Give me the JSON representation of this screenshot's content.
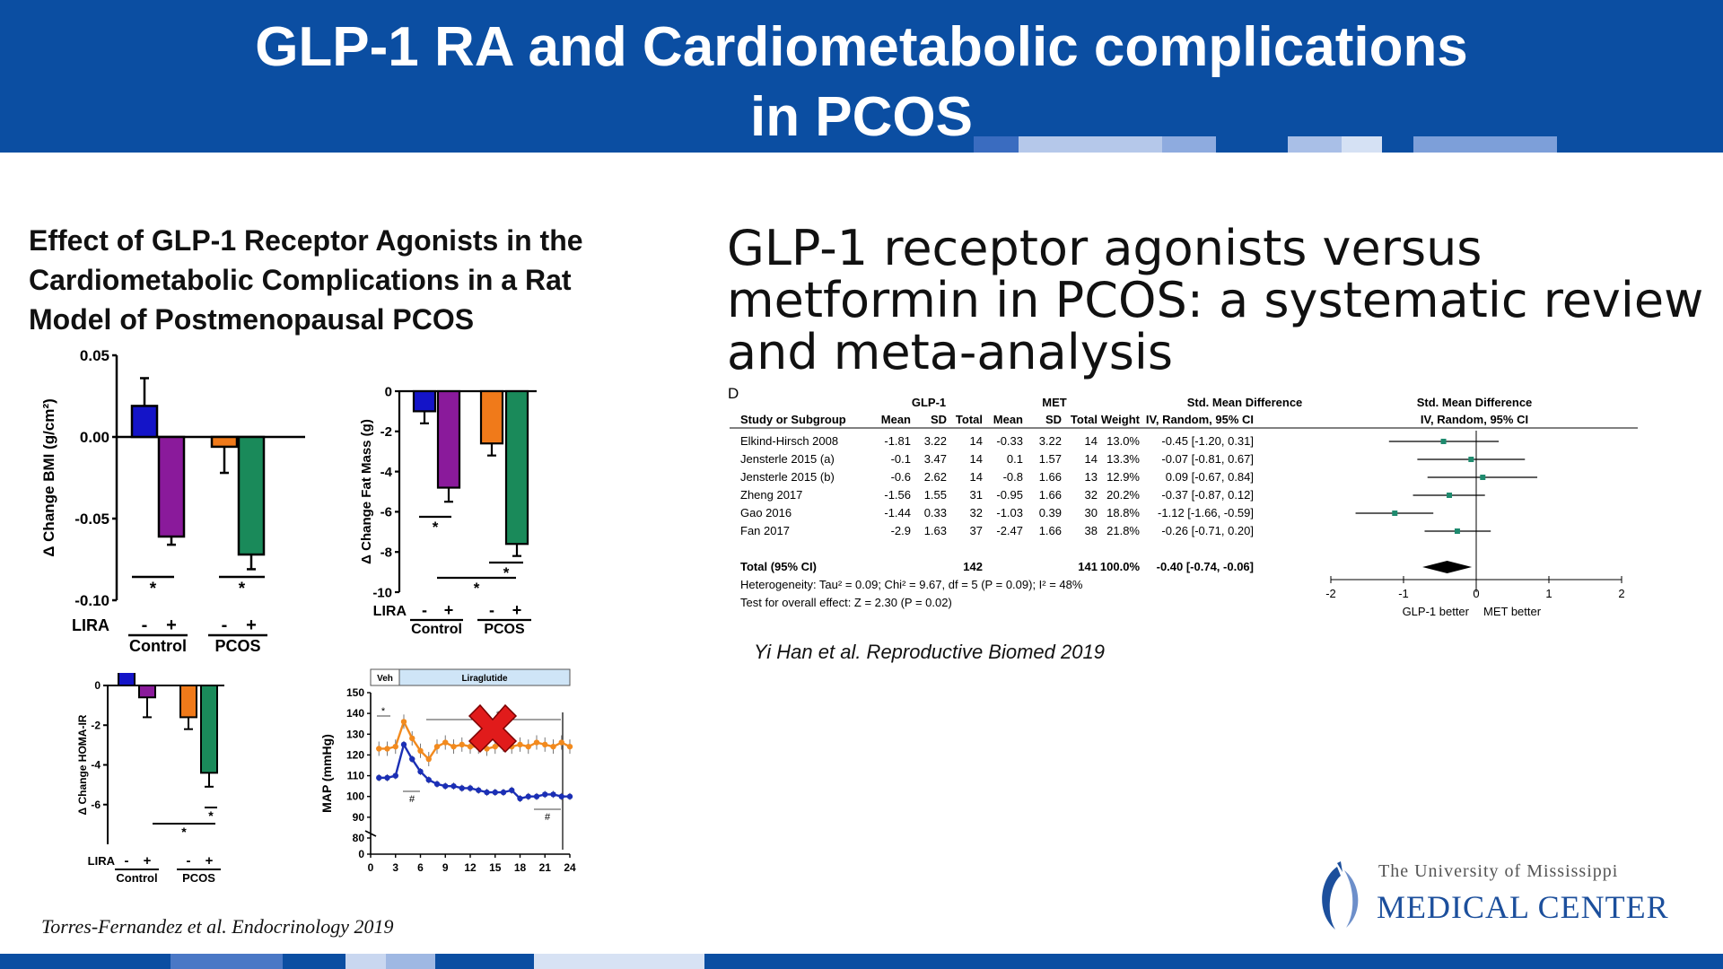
{
  "slide": {
    "title_line1": "GLP-1 RA and Cardiometabolic complications",
    "title_line2": "in PCOS",
    "left_title": "Effect of GLP-1 Receptor Agonists in the Cardiometabolic Complications in a Rat Model of Postmenopausal PCOS",
    "right_title": "GLP-1 receptor agonists versus metformin in PCOS: a systematic review and meta-analysis",
    "citation_left": "Torres-Fernandez et al. Endocrinology 2019",
    "citation_right": "Yi Han et al. Reproductive Biomed 2019",
    "logo_line1": "The University of Mississippi",
    "logo_line2": "MEDICAL CENTER"
  },
  "colors": {
    "header_blue": "#0b4ea2",
    "control_minus": "#1414c8",
    "control_plus": "#8a1a9b",
    "pcos_minus": "#f07a1a",
    "pcos_plus": "#1a8a5a",
    "veh_line": "#f28a1e",
    "lira_line": "#1b2fb5",
    "forest_point": "#1e8a6e",
    "cross_red": "#e11b1b"
  },
  "chart_data": [
    {
      "type": "bar",
      "ylabel": "Δ Change BMI (g/cm²)",
      "ylim": [
        -0.1,
        0.05
      ],
      "yticks": [
        "0.05",
        "0.00",
        "-0.05",
        "-0.10"
      ],
      "group_label_prefix": "LIRA",
      "categories": [
        "Control -",
        "Control +",
        "PCOS -",
        "PCOS +"
      ],
      "signs": [
        "-",
        "+",
        "-",
        "+"
      ],
      "groups": [
        "Control",
        "PCOS"
      ],
      "values": [
        0.019,
        -0.061,
        -0.006,
        -0.072
      ],
      "errors": [
        0.017,
        0.005,
        0.016,
        0.009
      ],
      "sig_labels": [
        "*",
        "*"
      ]
    },
    {
      "type": "bar",
      "ylabel": "Δ Change Fat Mass (g)",
      "ylim": [
        -10,
        0
      ],
      "yticks": [
        "0",
        "-2",
        "-4",
        "-6",
        "-8",
        "-10"
      ],
      "group_label_prefix": "LIRA",
      "categories": [
        "Control -",
        "Control +",
        "PCOS -",
        "PCOS +"
      ],
      "signs": [
        "-",
        "+",
        "-",
        "+"
      ],
      "groups": [
        "Control",
        "PCOS"
      ],
      "values": [
        -1.0,
        -4.8,
        -2.6,
        -7.6
      ],
      "errors": [
        0.6,
        0.7,
        0.6,
        0.6
      ],
      "sig_labels": [
        "*",
        "*",
        "*"
      ]
    },
    {
      "type": "bar",
      "ylabel": "Δ Change HOMA-IR",
      "ylim": [
        -8,
        0
      ],
      "yticks": [
        "0",
        "-2",
        "-4",
        "-6"
      ],
      "group_label_prefix": "LIRA",
      "categories": [
        "Control -",
        "Control +",
        "PCOS -",
        "PCOS +"
      ],
      "signs": [
        "-",
        "+",
        "-",
        "+"
      ],
      "groups": [
        "Control",
        "PCOS"
      ],
      "values": [
        0.7,
        -0.6,
        -1.6,
        -4.4
      ],
      "errors": [
        0.8,
        1.0,
        0.6,
        0.7
      ],
      "sig_labels": [
        "*",
        "*"
      ]
    },
    {
      "type": "line",
      "ylabel": "MAP (mmHg)",
      "xlim": [
        0,
        24
      ],
      "ylim": [
        0,
        150
      ],
      "xticks": [
        0,
        3,
        6,
        9,
        12,
        15,
        18,
        21,
        24
      ],
      "yticks": [
        0,
        80,
        90,
        100,
        110,
        120,
        130,
        140,
        150
      ],
      "phase_labels": [
        "Veh",
        "Liraglutide"
      ],
      "annotations": [
        "*",
        "#",
        "*",
        "#"
      ],
      "x": [
        1,
        2,
        3,
        4,
        5,
        6,
        7,
        8,
        9,
        10,
        11,
        12,
        13,
        14,
        15,
        16,
        17,
        18,
        19,
        20,
        21,
        22,
        23,
        24
      ],
      "series": [
        {
          "values": [
            123,
            123,
            124,
            136,
            128,
            122,
            118,
            124,
            126,
            124,
            125,
            124,
            124,
            123,
            124,
            125,
            124,
            125,
            124,
            126,
            125,
            124,
            126,
            124
          ]
        },
        {
          "values": [
            109,
            109,
            110,
            125,
            118,
            112,
            108,
            106,
            105,
            105,
            104,
            104,
            103,
            102,
            102,
            102,
            103,
            99,
            100,
            100,
            101,
            101,
            100,
            100
          ]
        }
      ]
    },
    {
      "type": "forest",
      "panel_label": "D",
      "group_headers": [
        "GLP-1",
        "MET",
        "Std. Mean Difference",
        "Std. Mean Difference"
      ],
      "columns": [
        "Study or Subgroup",
        "Mean",
        "SD",
        "Total",
        "Mean",
        "SD",
        "Total",
        "Weight",
        "IV, Random, 95% CI",
        "IV, Random, 95% CI"
      ],
      "studies": [
        {
          "name": "Elkind-Hirsch 2008",
          "m1": "-1.81",
          "sd1": "3.22",
          "n1": "14",
          "m2": "-0.33",
          "sd2": "3.22",
          "n2": "14",
          "weight": "13.0%",
          "ci": "-0.45 [-1.20, 0.31]",
          "est": -0.45,
          "lo": -1.2,
          "hi": 0.31
        },
        {
          "name": "Jensterle 2015 (a)",
          "m1": "-0.1",
          "sd1": "3.47",
          "n1": "14",
          "m2": "0.1",
          "sd2": "1.57",
          "n2": "14",
          "weight": "13.3%",
          "ci": "-0.07 [-0.81, 0.67]",
          "est": -0.07,
          "lo": -0.81,
          "hi": 0.67
        },
        {
          "name": "Jensterle 2015 (b)",
          "m1": "-0.6",
          "sd1": "2.62",
          "n1": "14",
          "m2": "-0.8",
          "sd2": "1.66",
          "n2": "13",
          "weight": "12.9%",
          "ci": "0.09 [-0.67, 0.84]",
          "est": 0.09,
          "lo": -0.67,
          "hi": 0.84
        },
        {
          "name": "Zheng 2017",
          "m1": "-1.56",
          "sd1": "1.55",
          "n1": "31",
          "m2": "-0.95",
          "sd2": "1.66",
          "n2": "32",
          "weight": "20.2%",
          "ci": "-0.37 [-0.87, 0.12]",
          "est": -0.37,
          "lo": -0.87,
          "hi": 0.12
        },
        {
          "name": "Gao 2016",
          "m1": "-1.44",
          "sd1": "0.33",
          "n1": "32",
          "m2": "-1.03",
          "sd2": "0.39",
          "n2": "30",
          "weight": "18.8%",
          "ci": "-1.12 [-1.66, -0.59]",
          "est": -1.12,
          "lo": -1.66,
          "hi": -0.59
        },
        {
          "name": "Fan 2017",
          "m1": "-2.9",
          "sd1": "1.63",
          "n1": "37",
          "m2": "-2.47",
          "sd2": "1.66",
          "n2": "38",
          "weight": "21.8%",
          "ci": "-0.26 [-0.71, 0.20]",
          "est": -0.26,
          "lo": -0.71,
          "hi": 0.2
        }
      ],
      "total": {
        "label": "Total (95% CI)",
        "n1": "142",
        "n2": "141",
        "weight": "100.0%",
        "ci": "-0.40 [-0.74, -0.06]",
        "est": -0.4,
        "lo": -0.74,
        "hi": -0.06
      },
      "heterogeneity": "Heterogeneity: Tau² = 0.09; Chi² = 9.67, df = 5 (P = 0.09); I² = 48%",
      "overall_effect": "Test for overall effect: Z = 2.30 (P = 0.02)",
      "xlim": [
        -2,
        2
      ],
      "xticks": [
        "-2",
        "-1",
        "0",
        "1",
        "2"
      ],
      "xlabel_left": "GLP-1 better",
      "xlabel_right": "MET better"
    }
  ]
}
